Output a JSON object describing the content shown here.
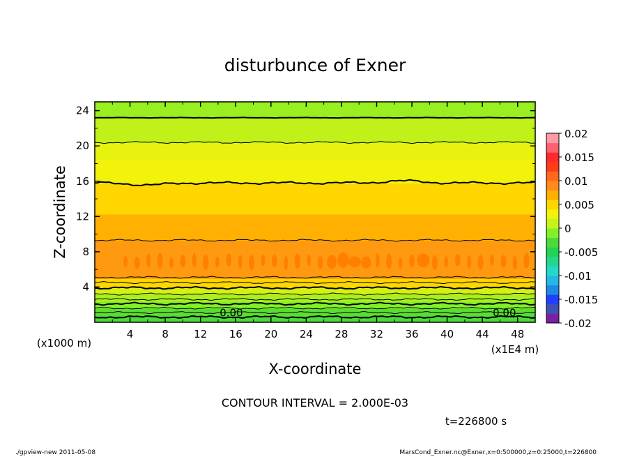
{
  "chart_data": {
    "type": "heatmap",
    "title": "disturbunce of Exner",
    "xlabel": "X-coordinate",
    "ylabel": "Z-coordinate",
    "x_unit": "(x1E4 m)",
    "y_unit": "(x1000 m)",
    "xlim": [
      0,
      50
    ],
    "ylim": [
      0,
      25
    ],
    "x_ticks": [
      4,
      8,
      12,
      16,
      20,
      24,
      28,
      32,
      36,
      40,
      44,
      48
    ],
    "y_ticks": [
      4,
      8,
      12,
      16,
      20,
      24
    ],
    "contour_interval_text": "CONTOUR INTERVAL = 2.000E-03",
    "time_text": "t=226800 s",
    "zero_labels": [
      {
        "text": "0.00",
        "x": 15.5,
        "z": 0.9
      },
      {
        "text": "0.00",
        "x": 46.5,
        "z": 0.9
      }
    ],
    "colorbar": {
      "min": -0.02,
      "max": 0.02,
      "tick_labels": [
        "0.02",
        "0.015",
        "0.01",
        "0.005",
        "0",
        "-0.005",
        "-0.01",
        "-0.015",
        "-0.02"
      ],
      "tick_values": [
        0.02,
        0.015,
        0.01,
        0.005,
        0,
        -0.005,
        -0.01,
        -0.015,
        -0.02
      ],
      "level_colors": [
        "#7B1FA2",
        "#3F51B5",
        "#1E40FF",
        "#1E88E5",
        "#22B8E8",
        "#24D8C8",
        "#24D68A",
        "#22D455",
        "#4CD93A",
        "#82F028",
        "#C8F21A",
        "#F2F20A",
        "#FFD600",
        "#FFB000",
        "#FF8C1A",
        "#FF6A1A",
        "#FF3B1A",
        "#FF2A2A",
        "#FF6070",
        "#FF9AA4"
      ]
    },
    "value_bands": [
      {
        "z_from": 0.0,
        "z_to": 0.8,
        "value": 0.0005,
        "color": "#4CD93A"
      },
      {
        "z_from": 0.8,
        "z_to": 1.6,
        "value": 0.001,
        "color": "#5CDD34"
      },
      {
        "z_from": 1.6,
        "z_to": 2.4,
        "value": 0.002,
        "color": "#82F028"
      },
      {
        "z_from": 2.4,
        "z_to": 3.2,
        "value": 0.003,
        "color": "#A8F020"
      },
      {
        "z_from": 3.2,
        "z_to": 4.0,
        "value": 0.004,
        "color": "#D4F015"
      },
      {
        "z_from": 4.0,
        "z_to": 5.0,
        "value": 0.0065,
        "color": "#FFD600"
      },
      {
        "z_from": 5.0,
        "z_to": 9.3,
        "value": 0.0085,
        "color": "#FF9A10"
      },
      {
        "z_from": 9.3,
        "z_to": 12.3,
        "value": 0.0075,
        "color": "#FFB000"
      },
      {
        "z_from": 12.3,
        "z_to": 15.8,
        "value": 0.0065,
        "color": "#FFD600"
      },
      {
        "z_from": 15.8,
        "z_to": 18.5,
        "value": 0.005,
        "color": "#F2F20A"
      },
      {
        "z_from": 18.5,
        "z_to": 20.4,
        "value": 0.004,
        "color": "#E8F20F"
      },
      {
        "z_from": 20.4,
        "z_to": 23.2,
        "value": 0.003,
        "color": "#C0F21A"
      },
      {
        "z_from": 23.2,
        "z_to": 25.0,
        "value": 0.002,
        "color": "#98F020"
      }
    ],
    "max_blobs": {
      "z_center": 6.9,
      "value": 0.01,
      "color": "#FF8000"
    },
    "contour_lines": [
      {
        "z": 0.6,
        "weight": "bold"
      },
      {
        "z": 1.1,
        "weight": "thin"
      },
      {
        "z": 1.6,
        "weight": "thin"
      },
      {
        "z": 2.1,
        "weight": "bold"
      },
      {
        "z": 2.6,
        "weight": "thin"
      },
      {
        "z": 3.2,
        "weight": "thin"
      },
      {
        "z": 3.9,
        "weight": "bold"
      },
      {
        "z": 4.5,
        "weight": "thin"
      },
      {
        "z": 5.1,
        "weight": "thin"
      },
      {
        "z": 9.3,
        "weight": "thin"
      },
      {
        "z": 15.8,
        "weight": "bold"
      },
      {
        "z": 20.4,
        "weight": "thin"
      },
      {
        "z": 23.2,
        "weight": "bold"
      }
    ]
  },
  "footer": {
    "left": "./gpview-new   2011-05-08",
    "right": "MarsCond_Exner.nc@Exner,x=0:500000,z=0:25000,t=226800"
  }
}
